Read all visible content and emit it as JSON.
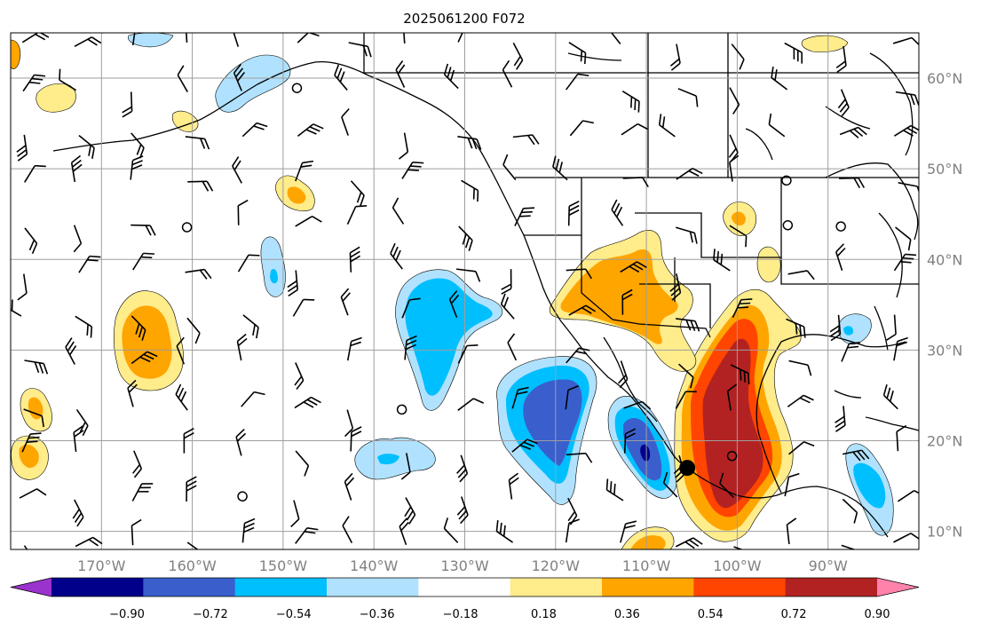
{
  "title": "2025061200 F072",
  "map": {
    "lon_range": [
      -180,
      -80
    ],
    "lat_range": [
      8,
      65
    ],
    "lon_ticks": [
      {
        "value": -170,
        "label": "170°W"
      },
      {
        "value": -160,
        "label": "160°W"
      },
      {
        "value": -150,
        "label": "150°W"
      },
      {
        "value": -140,
        "label": "140°W"
      },
      {
        "value": -130,
        "label": "130°W"
      },
      {
        "value": -120,
        "label": "120°W"
      },
      {
        "value": -110,
        "label": "110°W"
      },
      {
        "value": -100,
        "label": "100°W"
      },
      {
        "value": -90,
        "label": "90°W"
      }
    ],
    "lat_ticks": [
      {
        "value": 10,
        "label": "10°N"
      },
      {
        "value": 20,
        "label": "20°N"
      },
      {
        "value": 30,
        "label": "30°N"
      },
      {
        "value": 40,
        "label": "40°N"
      },
      {
        "value": 50,
        "label": "50°N"
      },
      {
        "value": 60,
        "label": "60°N"
      }
    ],
    "grid": true,
    "tick_color": "#808080",
    "marker": {
      "lon": -105.5,
      "lat": 17,
      "color": "#000000"
    }
  },
  "colorbar": {
    "levels": [
      "−0.90",
      "−0.72",
      "−0.54",
      "−0.36",
      "−0.18",
      "0.18",
      "0.36",
      "0.54",
      "0.72",
      "0.90"
    ],
    "colors": [
      "#9a32cd",
      "#00008b",
      "#3a5fcd",
      "#00bfff",
      "#b0e2ff",
      "#ffffff",
      "#ffec8b",
      "#ffa500",
      "#ff4500",
      "#b22222",
      "#ff82ab"
    ],
    "extend": "both"
  },
  "chart_data": {
    "type": "heatmap",
    "title": "2025061200 F072",
    "x_range": [
      -180,
      -80
    ],
    "y_range": [
      8,
      65
    ],
    "levels": [
      -0.9,
      -0.72,
      -0.54,
      -0.36,
      -0.18,
      0.18,
      0.36,
      0.54,
      0.72,
      0.9
    ],
    "anomaly_areas": [
      {
        "lon": -121,
        "lat": 24,
        "level": -0.72
      },
      {
        "lon": -110,
        "lat": 19,
        "level": -0.9
      },
      {
        "lon": -133,
        "lat": 32,
        "level": -0.54
      },
      {
        "lon": -142,
        "lat": 18,
        "level": -0.54
      },
      {
        "lon": -147,
        "lat": 59,
        "level": -0.36
      },
      {
        "lon": -149,
        "lat": 39,
        "level": -0.54
      },
      {
        "lon": -86,
        "lat": 15,
        "level": -0.54
      },
      {
        "lon": -87,
        "lat": 30,
        "level": -0.54
      },
      {
        "lon": -100,
        "lat": 24,
        "level": 0.72
      },
      {
        "lon": -113,
        "lat": 34,
        "level": 0.54
      },
      {
        "lon": -165,
        "lat": 31,
        "level": 0.54
      },
      {
        "lon": -177,
        "lat": 23,
        "level": 0.54
      },
      {
        "lon": -178,
        "lat": 17,
        "level": 0.54
      },
      {
        "lon": -148,
        "lat": 48,
        "level": 0.36
      },
      {
        "lon": -95,
        "lat": 45,
        "level": 0.36
      },
      {
        "lon": -105,
        "lat": 10,
        "level": 0.54
      }
    ]
  }
}
